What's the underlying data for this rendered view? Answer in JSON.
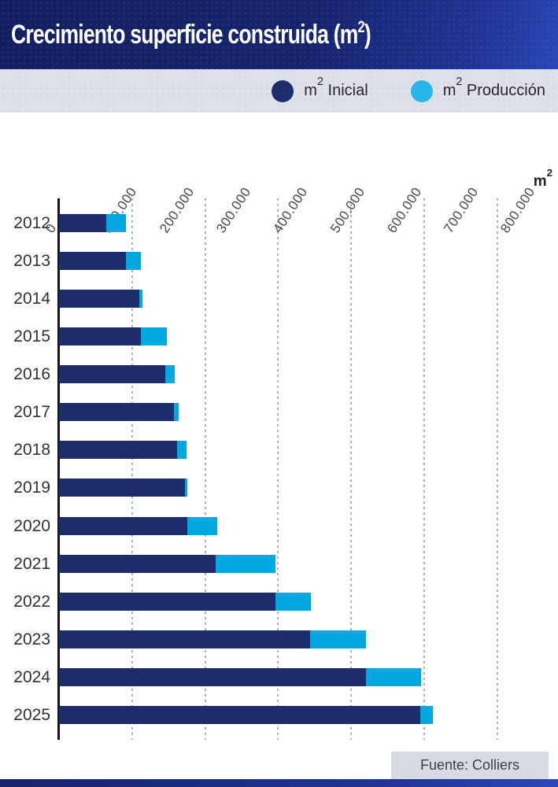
{
  "title": {
    "text": "Crecimiento superficie construida (m",
    "sup": "2",
    "close": ")"
  },
  "legend": {
    "items": [
      {
        "id": "inicial",
        "unit": "m",
        "sup": "2",
        "label": "Inicial",
        "swatch_color": "#1b2d6b"
      },
      {
        "id": "produccion",
        "unit": "m",
        "sup": "2",
        "label": "Producción",
        "swatch_color": "#29b6e9"
      }
    ]
  },
  "axis": {
    "unit_text": "m",
    "unit_sup": "2"
  },
  "chart_data": {
    "type": "bar",
    "orientation": "horizontal",
    "stacked": true,
    "title": "Crecimiento superficie construida (m²)",
    "categories": [
      "2012",
      "2013",
      "2014",
      "2015",
      "2016",
      "2017",
      "2018",
      "2019",
      "2020",
      "2021",
      "2022",
      "2023",
      "2024",
      "2025"
    ],
    "series": [
      {
        "name": "m² Inicial",
        "color": "#1b2d6b",
        "values": [
          65000,
          92000,
          110000,
          112000,
          145000,
          157000,
          162000,
          172000,
          176000,
          214000,
          296000,
          344000,
          420000,
          495000
        ]
      },
      {
        "name": "m² Producción",
        "color": "#00a7e1",
        "values": [
          27000,
          20000,
          4000,
          36000,
          13000,
          7000,
          13000,
          4000,
          41000,
          82000,
          49000,
          76000,
          76000,
          17000
        ]
      }
    ],
    "xlabel": "m²",
    "ylabel": "",
    "xlim": [
      0,
      800000
    ],
    "x_tick_labels": [
      "0",
      "100.000",
      "200.000",
      "300.000",
      "400.000",
      "500.000",
      "600.000",
      "700.000",
      "800.000"
    ],
    "tick_step": 100000,
    "grid": "vertical dotted lines every 100.000",
    "legend_position": "top"
  },
  "source": {
    "label": "Fuente: Colliers"
  },
  "colors": {
    "header_dark": "#16246b",
    "header_light": "#2a47b8",
    "legend_bar_bg": "#dfe1ea",
    "bar_navy": "#1b2d6b",
    "bar_cyan": "#00a7e1",
    "legend_cyan": "#29b6e9",
    "grid": "#b0b0b5",
    "axis": "#15151b",
    "source_box_bg": "#d8dbe4"
  }
}
